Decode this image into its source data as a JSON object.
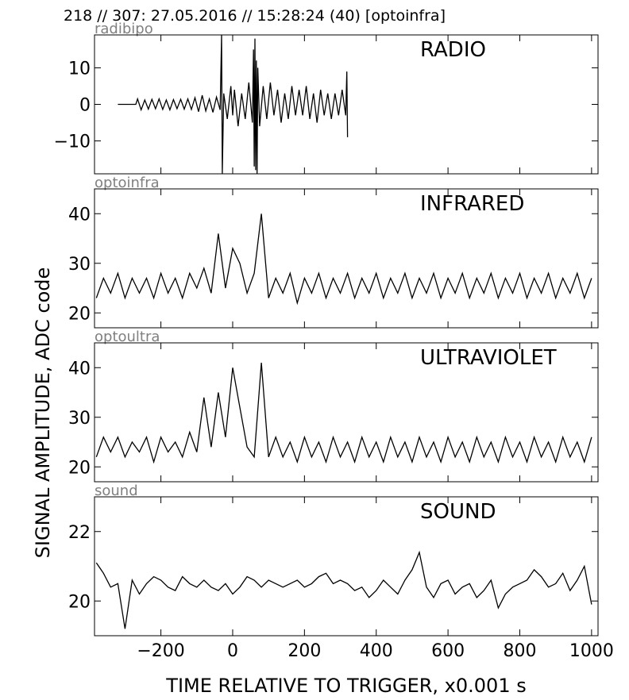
{
  "figure": {
    "title": "218 // 307:   27.05.2016 // 15:28:24 (40)  [optoinfra]",
    "xlabel": "TIME RELATIVE TO TRIGGER,   x0.001 s",
    "ylabel": "SIGNAL AMPLITUDE,  ADC code"
  },
  "chart_data": [
    {
      "type": "line",
      "title": "RADIO",
      "subtitle": "radibipo",
      "x": [
        -320,
        -270,
        -265,
        -255,
        -245,
        -235,
        -225,
        -215,
        -205,
        -195,
        -185,
        -175,
        -165,
        -155,
        -145,
        -135,
        -125,
        -115,
        -105,
        -95,
        -85,
        -75,
        -65,
        -55,
        -45,
        -35,
        -31,
        -29,
        -25,
        -15,
        -5,
        0,
        5,
        15,
        25,
        35,
        45,
        55,
        58,
        60,
        62,
        64,
        66,
        68,
        70,
        75,
        85,
        95,
        105,
        115,
        125,
        135,
        145,
        155,
        165,
        175,
        185,
        195,
        205,
        215,
        225,
        235,
        245,
        255,
        265,
        275,
        285,
        295,
        305,
        315,
        318,
        320
      ],
      "series": [
        {
          "color": "#000000",
          "values": [
            0,
            0,
            1.5,
            -1.5,
            1.2,
            -1.3,
            1.4,
            -1.2,
            1.5,
            -1.4,
            1.2,
            -1.5,
            1.3,
            -1.2,
            1.4,
            -1.3,
            1.5,
            -1.4,
            1.8,
            -2,
            2.5,
            -1.8,
            1.5,
            -2.2,
            2,
            -1.5,
            19,
            -19,
            3,
            -4,
            5,
            -3,
            4,
            -6,
            3,
            -4,
            6,
            -5,
            15,
            -17,
            18,
            -18,
            12,
            -19,
            10,
            -6,
            5,
            -4,
            6,
            -3,
            4,
            -5,
            3,
            -4,
            5,
            -3,
            4,
            -3,
            5,
            -4,
            3,
            -5,
            4,
            -3,
            3,
            -4,
            3,
            -3,
            4,
            -3,
            9,
            -9
          ]
        }
      ],
      "xlim": [
        -385,
        1018
      ],
      "xticks": [
        -200,
        0,
        200,
        400,
        600,
        800,
        1000
      ],
      "ylim": [
        -19,
        19
      ],
      "yticks": [
        {
          "value": -10,
          "label": "−10"
        },
        0,
        10
      ]
    },
    {
      "type": "line",
      "title": "INFRARED",
      "subtitle": "optoinfra",
      "x": [
        -380,
        -360,
        -340,
        -320,
        -300,
        -280,
        -260,
        -240,
        -220,
        -200,
        -180,
        -160,
        -140,
        -120,
        -100,
        -80,
        -60,
        -40,
        -20,
        0,
        20,
        40,
        60,
        80,
        100,
        120,
        140,
        160,
        180,
        200,
        220,
        240,
        260,
        280,
        300,
        320,
        340,
        360,
        380,
        400,
        420,
        440,
        460,
        480,
        500,
        520,
        540,
        560,
        580,
        600,
        620,
        640,
        660,
        680,
        700,
        720,
        740,
        760,
        780,
        800,
        820,
        840,
        860,
        880,
        900,
        920,
        940,
        960,
        980,
        1000
      ],
      "series": [
        {
          "color": "#000000",
          "values": [
            23,
            27,
            24,
            28,
            23,
            27,
            24,
            27,
            23,
            28,
            24,
            27,
            23,
            28,
            25,
            29,
            24,
            36,
            25,
            33,
            30,
            24,
            28,
            40,
            23,
            27,
            24,
            28,
            22,
            27,
            24,
            28,
            23,
            27,
            24,
            28,
            23,
            27,
            24,
            28,
            23,
            27,
            24,
            28,
            23,
            27,
            24,
            28,
            23,
            27,
            24,
            28,
            23,
            27,
            24,
            28,
            23,
            27,
            24,
            28,
            23,
            27,
            24,
            28,
            23,
            27,
            24,
            28,
            23,
            27
          ]
        }
      ],
      "xlim": [
        -385,
        1018
      ],
      "xticks": [
        -200,
        0,
        200,
        400,
        600,
        800,
        1000
      ],
      "ylim": [
        17,
        45
      ],
      "yticks": [
        20,
        30,
        40
      ]
    },
    {
      "type": "line",
      "title": "ULTRAVIOLET",
      "subtitle": "optoultra",
      "x": [
        -380,
        -360,
        -340,
        -320,
        -300,
        -280,
        -260,
        -240,
        -220,
        -200,
        -180,
        -160,
        -140,
        -120,
        -100,
        -80,
        -60,
        -40,
        -20,
        0,
        20,
        40,
        60,
        80,
        100,
        120,
        140,
        160,
        180,
        200,
        220,
        240,
        260,
        280,
        300,
        320,
        340,
        360,
        380,
        400,
        420,
        440,
        460,
        480,
        500,
        520,
        540,
        560,
        580,
        600,
        620,
        640,
        660,
        680,
        700,
        720,
        740,
        760,
        780,
        800,
        820,
        840,
        860,
        880,
        900,
        920,
        940,
        960,
        980,
        1000
      ],
      "series": [
        {
          "color": "#000000",
          "values": [
            22,
            26,
            23,
            26,
            22,
            25,
            23,
            26,
            21,
            26,
            23,
            25,
            22,
            27,
            23,
            34,
            24,
            35,
            26,
            40,
            32,
            24,
            22,
            41,
            22,
            26,
            22,
            25,
            21,
            26,
            22,
            25,
            21,
            26,
            22,
            25,
            21,
            26,
            22,
            25,
            21,
            26,
            22,
            25,
            21,
            26,
            22,
            25,
            21,
            26,
            22,
            25,
            21,
            26,
            22,
            25,
            21,
            26,
            22,
            25,
            21,
            26,
            22,
            25,
            21,
            26,
            22,
            25,
            21,
            26
          ]
        }
      ],
      "xlim": [
        -385,
        1018
      ],
      "xticks": [
        -200,
        0,
        200,
        400,
        600,
        800,
        1000
      ],
      "ylim": [
        17,
        45
      ],
      "yticks": [
        20,
        30,
        40
      ]
    },
    {
      "type": "line",
      "title": "SOUND",
      "subtitle": "sound",
      "x": [
        -380,
        -360,
        -340,
        -320,
        -300,
        -280,
        -260,
        -240,
        -220,
        -200,
        -180,
        -160,
        -140,
        -120,
        -100,
        -80,
        -60,
        -40,
        -20,
        0,
        20,
        40,
        60,
        80,
        100,
        120,
        140,
        160,
        180,
        200,
        220,
        240,
        260,
        280,
        300,
        320,
        340,
        360,
        380,
        400,
        420,
        440,
        460,
        480,
        500,
        520,
        540,
        560,
        580,
        600,
        620,
        640,
        660,
        680,
        700,
        720,
        740,
        760,
        780,
        800,
        820,
        840,
        860,
        880,
        900,
        920,
        940,
        960,
        980,
        1000
      ],
      "series": [
        {
          "color": "#000000",
          "values": [
            21.1,
            20.8,
            20.4,
            20.5,
            19.2,
            20.6,
            20.2,
            20.5,
            20.7,
            20.6,
            20.4,
            20.3,
            20.7,
            20.5,
            20.4,
            20.6,
            20.4,
            20.3,
            20.5,
            20.2,
            20.4,
            20.7,
            20.6,
            20.4,
            20.6,
            20.5,
            20.4,
            20.5,
            20.6,
            20.4,
            20.5,
            20.7,
            20.8,
            20.5,
            20.6,
            20.5,
            20.3,
            20.4,
            20.1,
            20.3,
            20.6,
            20.4,
            20.2,
            20.6,
            20.9,
            21.4,
            20.4,
            20.1,
            20.5,
            20.6,
            20.2,
            20.4,
            20.5,
            20.1,
            20.3,
            20.6,
            19.8,
            20.2,
            20.4,
            20.5,
            20.6,
            20.9,
            20.7,
            20.4,
            20.5,
            20.8,
            20.3,
            20.6,
            21.0,
            19.9
          ]
        }
      ],
      "xlim": [
        -385,
        1018
      ],
      "xticks": [
        {
          "value": -200,
          "label": "−200"
        },
        0,
        200,
        400,
        600,
        800,
        1000
      ],
      "ylim": [
        19,
        23
      ],
      "yticks": [
        20,
        22
      ]
    }
  ]
}
